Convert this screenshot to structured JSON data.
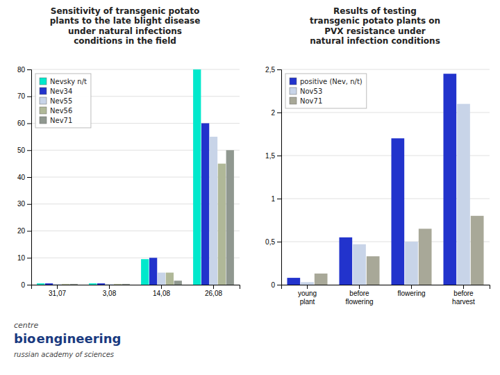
{
  "chart_data": [
    {
      "type": "bar",
      "title": "Sensitivity of transgenic potato\nplants to the late blight disease\nunder natural infections\nconditions in the field",
      "categories": [
        "31,07",
        "3,08",
        "14,08",
        "26,08"
      ],
      "series": [
        {
          "name": "Nevsky n/t",
          "color": "#00e8cc",
          "values": [
            0.5,
            0.5,
            9.5,
            80
          ]
        },
        {
          "name": "Nev34",
          "color": "#2233cc",
          "values": [
            0.5,
            0.5,
            10,
            60
          ]
        },
        {
          "name": "Nev55",
          "color": "#c8d4e8",
          "values": [
            0.3,
            0.3,
            4.5,
            55
          ]
        },
        {
          "name": "Nev56",
          "color": "#b0b898",
          "values": [
            0.3,
            0.3,
            4.5,
            45
          ]
        },
        {
          "name": "Nev71",
          "color": "#909890",
          "values": [
            0.3,
            0.3,
            1.5,
            50
          ]
        }
      ],
      "ylim": [
        0,
        80
      ],
      "yticks": [
        0,
        10,
        20,
        30,
        40,
        50,
        60,
        70,
        80
      ],
      "grid": true,
      "legend": "top-left",
      "annotations": [
        "centre",
        "bio",
        "engineering",
        "russian academy of sciences"
      ]
    },
    {
      "type": "bar",
      "title": "Results of testing\ntransgenic potato plants on\nPVX resistance under\nnatural infection conditions",
      "categories": [
        "young\nplant",
        "before\nflowering",
        "flowering",
        "before\nharvest"
      ],
      "series": [
        {
          "name": "positive (Nev, n/t)",
          "color": "#2233cc",
          "values": [
            0.08,
            0.55,
            1.7,
            2.45
          ]
        },
        {
          "name": "Nov53",
          "color": "#c8d4e8",
          "values": [
            0.03,
            0.47,
            0.5,
            2.1
          ]
        },
        {
          "name": "Nov71",
          "color": "#a8a898",
          "values": [
            0.13,
            0.33,
            0.65,
            0.8
          ]
        }
      ],
      "ylim": [
        0,
        2.5
      ],
      "yticks": [
        0,
        {
          "value": 0.5,
          "label": "0,5"
        },
        1,
        {
          "value": 1.5,
          "label": "1,5"
        },
        2,
        {
          "value": 2.5,
          "label": "2,5"
        }
      ],
      "grid": true,
      "legend": "top-left"
    }
  ]
}
